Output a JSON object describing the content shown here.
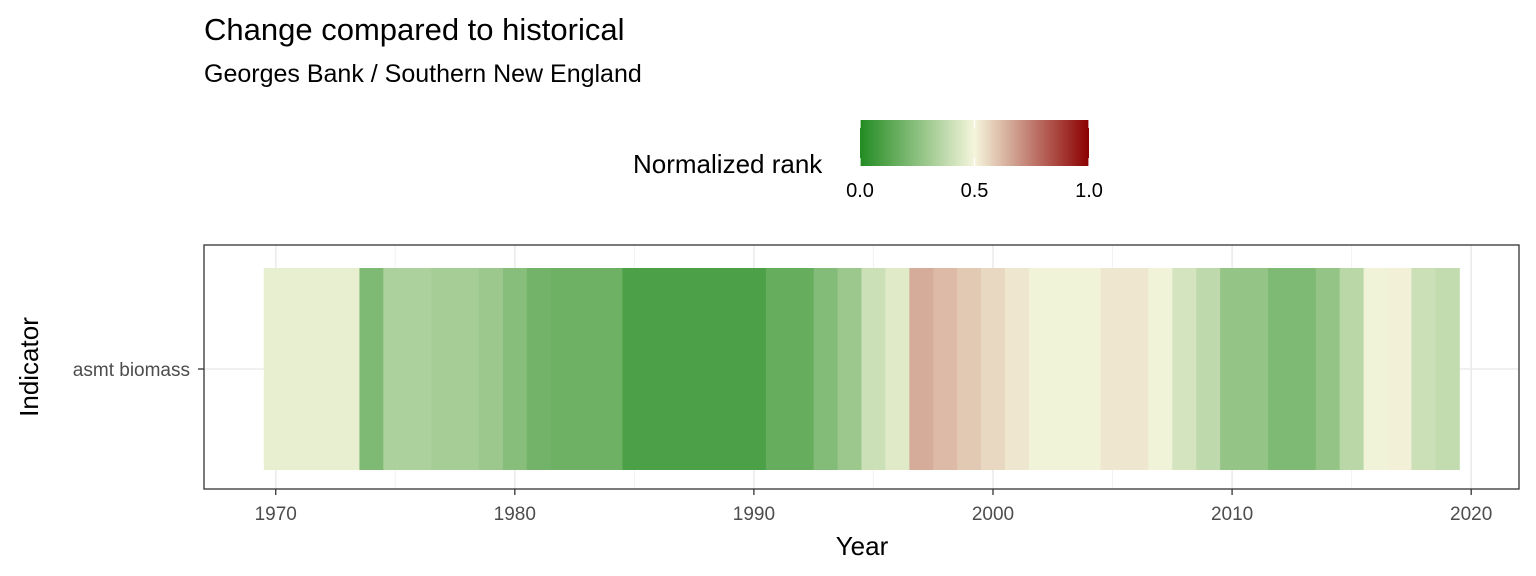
{
  "chart_data": {
    "type": "heatmap",
    "title": "Change compared to historical",
    "subtitle": "Georges Bank / Southern New England",
    "xlabel": "Year",
    "ylabel": "Indicator",
    "y_categories": [
      "asmt biomass"
    ],
    "xlim": [
      1967,
      2022
    ],
    "x_ticks": [
      1970,
      1980,
      1990,
      2000,
      2010,
      2020
    ],
    "grid": true,
    "legend": {
      "title": "Normalized rank",
      "position": "top",
      "ticks": [
        0.0,
        0.5,
        1.0
      ],
      "tick_labels": [
        "0.0",
        "0.5",
        "1.0"
      ],
      "colors": {
        "low": "#228B22",
        "mid": "#F5F5DC",
        "high": "#8B0000"
      }
    },
    "series": [
      {
        "indicator": "asmt biomass",
        "years": [
          1970,
          1971,
          1972,
          1973,
          1974,
          1975,
          1976,
          1977,
          1978,
          1979,
          1980,
          1981,
          1982,
          1983,
          1984,
          1985,
          1986,
          1987,
          1988,
          1989,
          1990,
          1991,
          1992,
          1993,
          1994,
          1995,
          1996,
          1997,
          1998,
          1999,
          2000,
          2001,
          2002,
          2003,
          2004,
          2005,
          2006,
          2007,
          2008,
          2009,
          2010,
          2011,
          2012,
          2013,
          2014,
          2015,
          2016,
          2017,
          2018,
          2019
        ],
        "values": [
          0.47,
          0.47,
          0.47,
          0.47,
          0.22,
          0.33,
          0.33,
          0.31,
          0.31,
          0.29,
          0.24,
          0.19,
          0.18,
          0.18,
          0.18,
          0.1,
          0.1,
          0.1,
          0.1,
          0.1,
          0.1,
          0.16,
          0.16,
          0.23,
          0.29,
          0.4,
          0.45,
          0.65,
          0.62,
          0.59,
          0.56,
          0.53,
          0.49,
          0.49,
          0.49,
          0.53,
          0.53,
          0.49,
          0.42,
          0.37,
          0.27,
          0.27,
          0.22,
          0.22,
          0.27,
          0.36,
          0.49,
          0.51,
          0.4,
          0.38
        ]
      }
    ]
  }
}
